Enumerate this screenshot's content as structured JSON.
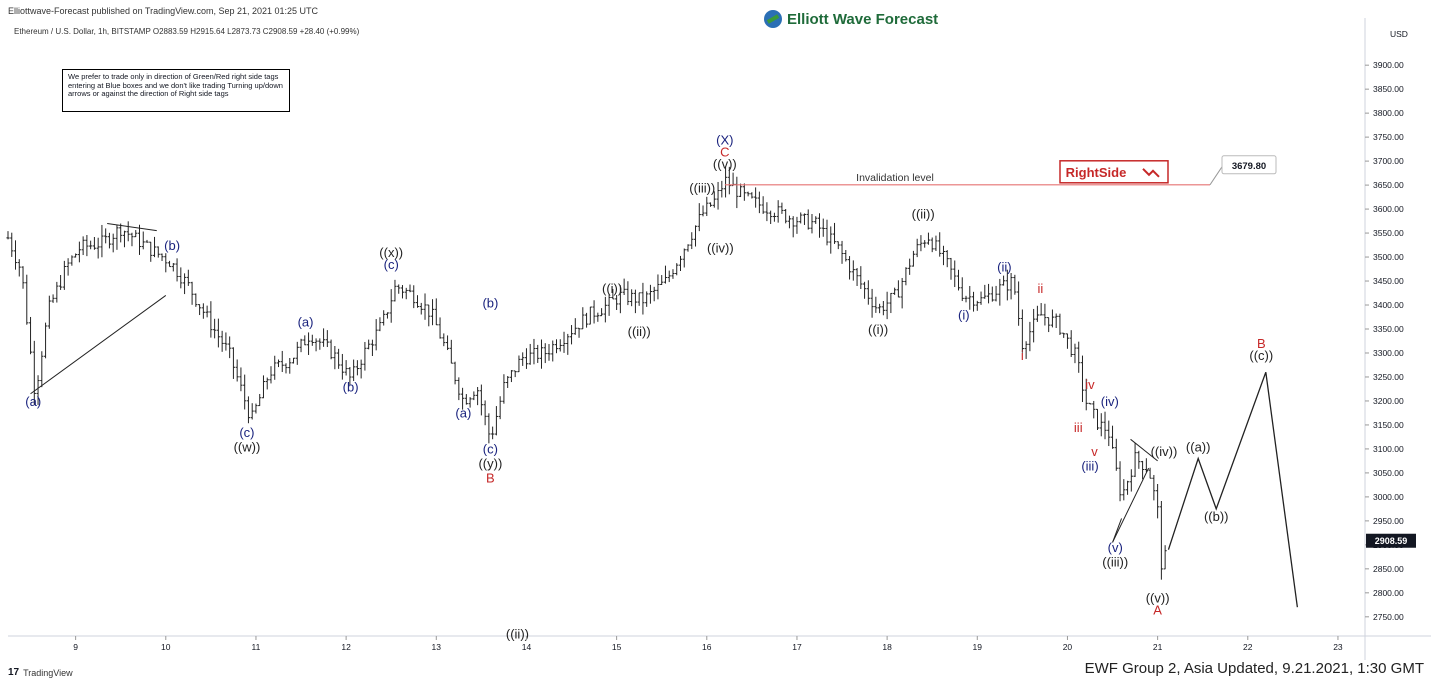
{
  "header": {
    "credit": "Elliottwave-Forecast published on TradingView.com, Sep 21, 2021 01:25 UTC",
    "logo_text": "Elliott Wave Forecast",
    "symbol_line": "Ethereum / U.S. Dollar, 1h, BITSTAMP  O2883.59  H2915.64  L2873.73  C2908.59  +28.40 (+0.99%)"
  },
  "notice": {
    "text": "We prefer to trade only in direction of Green/Red right side tags entering at Blue boxes and we don't like trading Turning up/down arrows or against the direction of Right side tags"
  },
  "footer": {
    "tv_logo": "TradingView",
    "update": "EWF Group 2, Asia Updated, 9.21.2021, 1:30 GMT"
  },
  "colors": {
    "navy": "#1a237e",
    "red": "#c62828",
    "black": "#222222",
    "invalidation": "#e57373",
    "candle": "#222222"
  },
  "chart_data": {
    "type": "bar",
    "title": "Ethereum / U.S. Dollar, 1h, BITSTAMP",
    "currency_label": "USD",
    "ylim": [
      2710,
      3990
    ],
    "xlim": [
      8.25,
      23.3
    ],
    "y_ticks": [
      2750,
      2800,
      2850,
      2900,
      2950,
      3000,
      3050,
      3100,
      3150,
      3200,
      3250,
      3300,
      3350,
      3400,
      3450,
      3500,
      3550,
      3600,
      3650,
      3700,
      3750,
      3800,
      3850,
      3900
    ],
    "x_ticks": [
      9,
      10,
      11,
      12,
      13,
      14,
      15,
      16,
      17,
      18,
      19,
      20,
      21,
      22,
      23
    ],
    "last_price": "2908.59",
    "invalidation": {
      "label": "Invalidation level",
      "value": "3679.80",
      "tag": "RightSide"
    },
    "price_path": [
      [
        8.25,
        3540
      ],
      [
        8.4,
        3470
      ],
      [
        8.55,
        3215
      ],
      [
        8.7,
        3390
      ],
      [
        8.9,
        3480
      ],
      [
        9.05,
        3520
      ],
      [
        9.3,
        3530
      ],
      [
        9.5,
        3560
      ],
      [
        9.8,
        3520
      ],
      [
        10.05,
        3490
      ],
      [
        10.25,
        3440
      ],
      [
        10.5,
        3360
      ],
      [
        10.7,
        3300
      ],
      [
        10.95,
        3160
      ],
      [
        11.15,
        3260
      ],
      [
        11.4,
        3290
      ],
      [
        11.6,
        3340
      ],
      [
        11.85,
        3300
      ],
      [
        12.05,
        3245
      ],
      [
        12.2,
        3300
      ],
      [
        12.4,
        3360
      ],
      [
        12.55,
        3440
      ],
      [
        12.75,
        3420
      ],
      [
        12.95,
        3380
      ],
      [
        13.1,
        3310
      ],
      [
        13.3,
        3200
      ],
      [
        13.45,
        3230
      ],
      [
        13.6,
        3120
      ],
      [
        13.75,
        3230
      ],
      [
        13.95,
        3290
      ],
      [
        14.2,
        3300
      ],
      [
        14.45,
        3340
      ],
      [
        14.7,
        3380
      ],
      [
        14.9,
        3400
      ],
      [
        15.05,
        3420
      ],
      [
        15.3,
        3410
      ],
      [
        15.55,
        3450
      ],
      [
        15.75,
        3520
      ],
      [
        15.95,
        3590
      ],
      [
        16.1,
        3620
      ],
      [
        16.2,
        3660
      ],
      [
        16.45,
        3620
      ],
      [
        16.7,
        3600
      ],
      [
        16.95,
        3580
      ],
      [
        17.2,
        3570
      ],
      [
        17.45,
        3520
      ],
      [
        17.65,
        3460
      ],
      [
        17.9,
        3390
      ],
      [
        18.1,
        3420
      ],
      [
        18.3,
        3510
      ],
      [
        18.45,
        3545
      ],
      [
        18.65,
        3490
      ],
      [
        18.85,
        3420
      ],
      [
        19.05,
        3410
      ],
      [
        19.25,
        3435
      ],
      [
        19.4,
        3450
      ],
      [
        19.5,
        3320
      ],
      [
        19.7,
        3380
      ],
      [
        19.9,
        3360
      ],
      [
        20.1,
        3290
      ],
      [
        20.2,
        3200
      ],
      [
        20.35,
        3150
      ],
      [
        20.45,
        3140
      ],
      [
        20.5,
        3090
      ],
      [
        20.6,
        3000
      ],
      [
        20.75,
        3080
      ],
      [
        20.9,
        3060
      ],
      [
        21.0,
        2970
      ],
      [
        21.05,
        2840
      ],
      [
        21.1,
        2890
      ],
      [
        21.12,
        2908.59
      ]
    ],
    "projection": [
      [
        21.12,
        2890
      ],
      [
        21.45,
        3080
      ],
      [
        21.65,
        2975
      ],
      [
        22.2,
        3260
      ],
      [
        22.55,
        2770
      ]
    ],
    "trend_lines": [
      [
        [
          8.5,
          3215
        ],
        [
          10.0,
          3420
        ]
      ],
      [
        [
          9.35,
          3570
        ],
        [
          9.9,
          3555
        ]
      ],
      [
        [
          20.5,
          2905
        ],
        [
          20.9,
          3060
        ]
      ],
      [
        [
          20.7,
          3120
        ],
        [
          21.0,
          3075
        ]
      ],
      [
        [
          20.5,
          2905
        ],
        [
          20.6,
          2955
        ]
      ]
    ],
    "annotations": [
      {
        "t": "(a)",
        "x": 8.53,
        "y": 3190,
        "c": "navy"
      },
      {
        "t": "(b)",
        "x": 10.07,
        "y": 3515,
        "c": "navy"
      },
      {
        "t": "(c)",
        "x": 10.9,
        "y": 3125,
        "c": "navy"
      },
      {
        "t": "((w))",
        "x": 10.9,
        "y": 3095,
        "c": "black"
      },
      {
        "t": "(a)",
        "x": 11.55,
        "y": 3355,
        "c": "navy"
      },
      {
        "t": "(b)",
        "x": 12.05,
        "y": 3220,
        "c": "navy"
      },
      {
        "t": "((x))",
        "x": 12.5,
        "y": 3500,
        "c": "black"
      },
      {
        "t": "(c)",
        "x": 12.5,
        "y": 3475,
        "c": "navy"
      },
      {
        "t": "(a)",
        "x": 13.3,
        "y": 3165,
        "c": "navy"
      },
      {
        "t": "(b)",
        "x": 13.6,
        "y": 3395,
        "c": "navy"
      },
      {
        "t": "(c)",
        "x": 13.6,
        "y": 3090,
        "c": "navy"
      },
      {
        "t": "((y))",
        "x": 13.6,
        "y": 3060,
        "c": "black"
      },
      {
        "t": "B",
        "x": 13.6,
        "y": 3030,
        "c": "red"
      },
      {
        "t": "((i))",
        "x": 14.95,
        "y": 3425,
        "c": "black"
      },
      {
        "t": "((ii))",
        "x": 15.25,
        "y": 3335,
        "c": "black"
      },
      {
        "t": "((iii))",
        "x": 15.95,
        "y": 3635,
        "c": "black"
      },
      {
        "t": "((iv))",
        "x": 16.15,
        "y": 3510,
        "c": "black"
      },
      {
        "t": "(X)",
        "x": 16.2,
        "y": 3735,
        "c": "navy"
      },
      {
        "t": "C",
        "x": 16.2,
        "y": 3710,
        "c": "red"
      },
      {
        "t": "((v))",
        "x": 16.2,
        "y": 3685,
        "c": "black"
      },
      {
        "t": "((i))",
        "x": 17.9,
        "y": 3340,
        "c": "black"
      },
      {
        "t": "((ii))",
        "x": 18.4,
        "y": 3580,
        "c": "black"
      },
      {
        "t": "(i)",
        "x": 18.85,
        "y": 3370,
        "c": "navy"
      },
      {
        "t": "(ii)",
        "x": 19.3,
        "y": 3470,
        "c": "navy"
      },
      {
        "t": "i",
        "x": 19.5,
        "y": 3285,
        "c": "red"
      },
      {
        "t": "ii",
        "x": 19.7,
        "y": 3425,
        "c": "red"
      },
      {
        "t": "iv",
        "x": 20.25,
        "y": 3225,
        "c": "red"
      },
      {
        "t": "iii",
        "x": 20.12,
        "y": 3135,
        "c": "red"
      },
      {
        "t": "(iv)",
        "x": 20.47,
        "y": 3190,
        "c": "navy"
      },
      {
        "t": "v",
        "x": 20.3,
        "y": 3085,
        "c": "red"
      },
      {
        "t": "(iii)",
        "x": 20.25,
        "y": 3055,
        "c": "navy"
      },
      {
        "t": "((iv))",
        "x": 21.07,
        "y": 3085,
        "c": "black"
      },
      {
        "t": "(v)",
        "x": 20.53,
        "y": 2885,
        "c": "navy"
      },
      {
        "t": "((iii))",
        "x": 20.53,
        "y": 2855,
        "c": "black"
      },
      {
        "t": "((v))",
        "x": 21.0,
        "y": 2780,
        "c": "black"
      },
      {
        "t": "A",
        "x": 21.0,
        "y": 2755,
        "c": "red"
      },
      {
        "t": "((a))",
        "x": 21.45,
        "y": 3095,
        "c": "black"
      },
      {
        "t": "((b))",
        "x": 21.65,
        "y": 2950,
        "c": "black"
      },
      {
        "t": "B",
        "x": 22.15,
        "y": 3310,
        "c": "red"
      },
      {
        "t": "((c))",
        "x": 22.15,
        "y": 3285,
        "c": "black"
      },
      {
        "t": "((ii))",
        "x": 13.9,
        "y": 2705,
        "c": "black"
      }
    ]
  }
}
